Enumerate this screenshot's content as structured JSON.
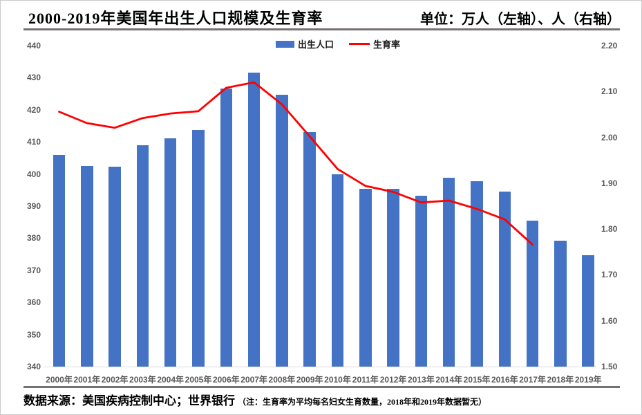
{
  "header": {
    "title": "2000-2019年美国年出生人口规模及生育率",
    "units_label": "单位：万人（左轴）、人（右轴）"
  },
  "legend": [
    {
      "label": "出生人口",
      "marker": "bar-swatch",
      "color": "#4472C4"
    },
    {
      "label": "生育率",
      "marker": "line-swatch",
      "color": "#FF0000"
    }
  ],
  "footer": {
    "source": "数据来源：美国疾病控制中心；世界银行",
    "note": "（注：生育率为平均每名妇女生育数量，2018年和2019年数据暂无）"
  },
  "chart_data": {
    "type": "bar",
    "subtype": "bar+line dual axis",
    "title": "2000-2019年美国年出生人口规模及生育率",
    "categories": [
      "2000年",
      "2001年",
      "2002年",
      "2003年",
      "2004年",
      "2005年",
      "2006年",
      "2007年",
      "2008年",
      "2009年",
      "2010年",
      "2011年",
      "2012年",
      "2013年",
      "2014年",
      "2015年",
      "2016年",
      "2017年",
      "2018年",
      "2019年"
    ],
    "series": [
      {
        "name": "出生人口",
        "type": "bar",
        "axis": "left",
        "unit": "万人",
        "color": "#4472C4",
        "values": [
          405.9,
          402.6,
          402.2,
          409.0,
          411.2,
          413.8,
          426.6,
          431.6,
          424.8,
          413.1,
          399.9,
          395.4,
          395.3,
          393.2,
          398.8,
          397.8,
          394.6,
          385.5,
          379.2,
          374.7
        ]
      },
      {
        "name": "生育率",
        "type": "line",
        "axis": "right",
        "unit": "人",
        "color": "#FF0000",
        "values": [
          2.056,
          2.031,
          2.021,
          2.042,
          2.052,
          2.057,
          2.108,
          2.12,
          2.072,
          2.002,
          1.931,
          1.894,
          1.881,
          1.858,
          1.862,
          1.844,
          1.821,
          1.766,
          null,
          null
        ]
      }
    ],
    "left_axis": {
      "min": 340,
      "max": 440,
      "step": 10,
      "ticks": [
        "440",
        "430",
        "420",
        "410",
        "400",
        "390",
        "380",
        "370",
        "360",
        "350",
        "340"
      ]
    },
    "right_axis": {
      "min": 1.5,
      "max": 2.2,
      "step": 0.1,
      "ticks": [
        "2.20",
        "2.10",
        "2.00",
        "1.90",
        "1.80",
        "1.70",
        "1.60",
        "1.50"
      ]
    },
    "grid": false,
    "legend_position": "top-center",
    "note": "2018年和2019年生育率数据暂无"
  }
}
